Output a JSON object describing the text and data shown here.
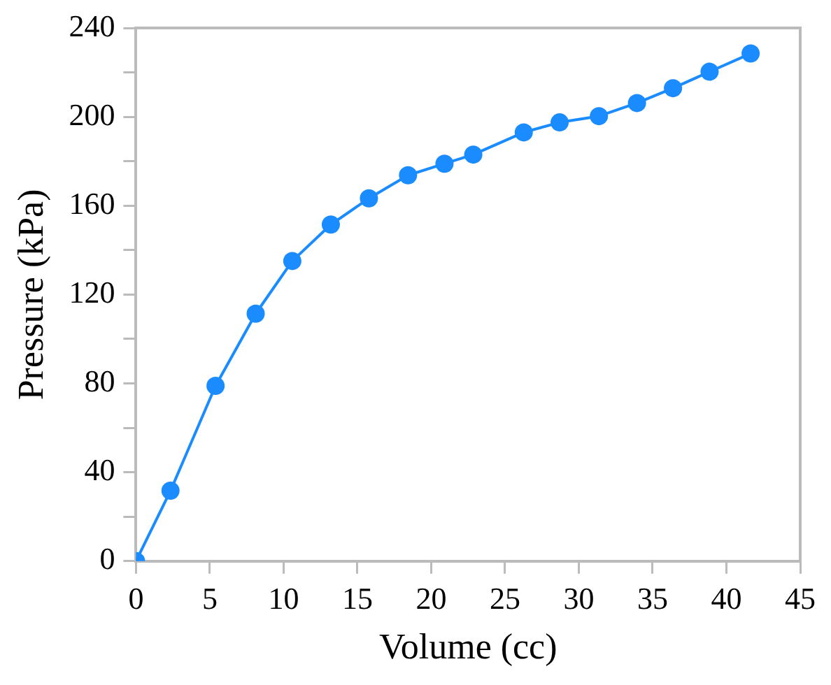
{
  "chart_data": {
    "type": "line",
    "xlabel": "Volume (cc)",
    "ylabel": "Pressure (kPa)",
    "x": [
      0,
      2.34,
      5.39,
      8.11,
      10.59,
      13.2,
      15.78,
      18.43,
      20.9,
      22.85,
      26.27,
      28.7,
      31.36,
      33.94,
      36.38,
      38.86,
      41.64
    ],
    "series": [
      {
        "color": "#1a8cff",
        "values": [
          0,
          31.7,
          78.9,
          111.4,
          135.1,
          151.5,
          163.3,
          173.7,
          178.9,
          183.0,
          193.0,
          197.5,
          200.3,
          206.2,
          212.9,
          220.3,
          228.5
        ]
      }
    ],
    "xlim": [
      0,
      45
    ],
    "xticks": [
      0,
      5,
      10,
      15,
      20,
      25,
      30,
      35,
      40,
      45
    ],
    "ylim": [
      0,
      240
    ],
    "yticks": [
      0,
      {
        "value": 20,
        "label": null
      },
      40,
      {
        "value": 60,
        "label": null
      },
      80,
      {
        "value": 100,
        "label": null
      },
      120,
      {
        "value": 140,
        "label": null
      },
      160,
      {
        "value": 180,
        "label": null
      },
      200,
      {
        "value": 220,
        "label": null
      },
      240
    ],
    "grid": false,
    "legend": false,
    "marker": "circle",
    "line_style": "solid"
  }
}
